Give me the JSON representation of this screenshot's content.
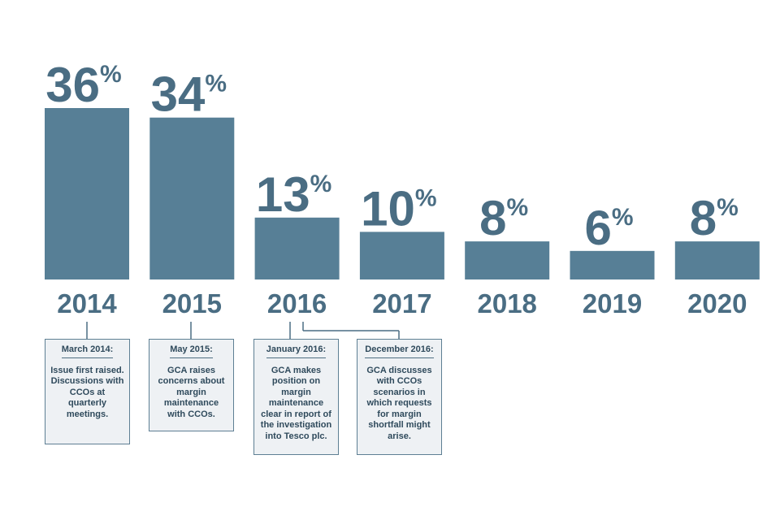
{
  "chart_data": {
    "type": "bar",
    "categories": [
      "2014",
      "2015",
      "2016",
      "2017",
      "2018",
      "2019",
      "2020"
    ],
    "values": [
      36,
      34,
      13,
      10,
      8,
      6,
      8
    ],
    "value_labels": [
      "36",
      "34",
      "13",
      "10",
      "8",
      "6",
      "8"
    ],
    "value_suffix": "%",
    "title": "",
    "xlabel": "",
    "ylabel": "",
    "ylim": [
      0,
      36
    ],
    "grid": false,
    "legend": "none",
    "bar_color": "#577f96",
    "text_color": "#4a6d83"
  },
  "notes": [
    {
      "title": "March 2014:",
      "body": "Issue first raised. Discussions with CCOs at quarterly meetings."
    },
    {
      "title": "May 2015:",
      "body": "GCA raises concerns about margin maintenance with CCOs."
    },
    {
      "title": "January 2016:",
      "body": "GCA makes position on margin maintenance clear in report of the investigation into Tesco plc."
    },
    {
      "title": "December 2016:",
      "body": "GCA discusses with CCOs scenarios in which requests for margin shortfall might arise."
    }
  ]
}
